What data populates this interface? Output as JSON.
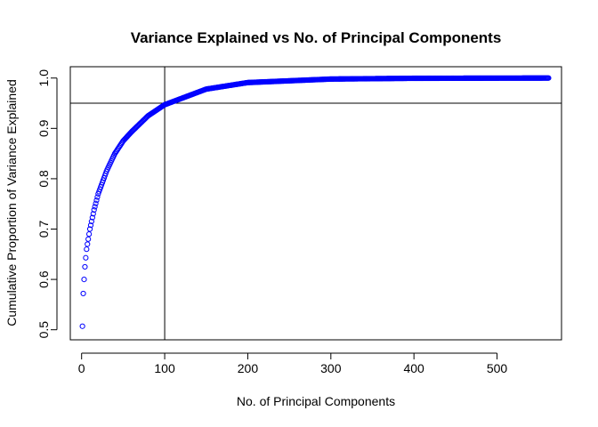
{
  "chart_data": {
    "type": "scatter",
    "title": "Variance Explained vs No. of Principal Components",
    "xlabel": "No. of Principal Components",
    "ylabel": "Cumulative Proportion of Variance Explained",
    "xlim": [
      -13.6,
      577.6
    ],
    "ylim": [
      0.48,
      1.0225
    ],
    "x_ticks": [
      0,
      100,
      200,
      300,
      400,
      500
    ],
    "y_ticks": [
      0.5,
      0.6,
      0.7,
      0.8,
      0.9,
      1.0
    ],
    "x_tick_labels": [
      "0",
      "100",
      "200",
      "300",
      "400",
      "500"
    ],
    "y_tick_labels": [
      "0.5",
      "0.6",
      "0.7",
      "0.8",
      "0.9",
      "1.0"
    ],
    "n_components": 562,
    "reference_lines": {
      "vertical_x": 100,
      "horizontal_y": 0.95
    },
    "grid": false,
    "legend": "none",
    "point_color": "#0000ff",
    "series": [
      {
        "values_sampled": [
          {
            "x": 1,
            "y": 0.507
          },
          {
            "x": 2,
            "y": 0.572
          },
          {
            "x": 3,
            "y": 0.6
          },
          {
            "x": 4,
            "y": 0.625
          },
          {
            "x": 5,
            "y": 0.643
          },
          {
            "x": 6,
            "y": 0.66
          },
          {
            "x": 8,
            "y": 0.68
          },
          {
            "x": 10,
            "y": 0.7
          },
          {
            "x": 15,
            "y": 0.738
          },
          {
            "x": 20,
            "y": 0.77
          },
          {
            "x": 30,
            "y": 0.815
          },
          {
            "x": 40,
            "y": 0.85
          },
          {
            "x": 50,
            "y": 0.875
          },
          {
            "x": 60,
            "y": 0.893
          },
          {
            "x": 80,
            "y": 0.925
          },
          {
            "x": 100,
            "y": 0.947
          },
          {
            "x": 150,
            "y": 0.978
          },
          {
            "x": 200,
            "y": 0.991
          },
          {
            "x": 300,
            "y": 0.998
          },
          {
            "x": 400,
            "y": 0.9995
          },
          {
            "x": 562,
            "y": 1.0
          }
        ]
      }
    ]
  }
}
